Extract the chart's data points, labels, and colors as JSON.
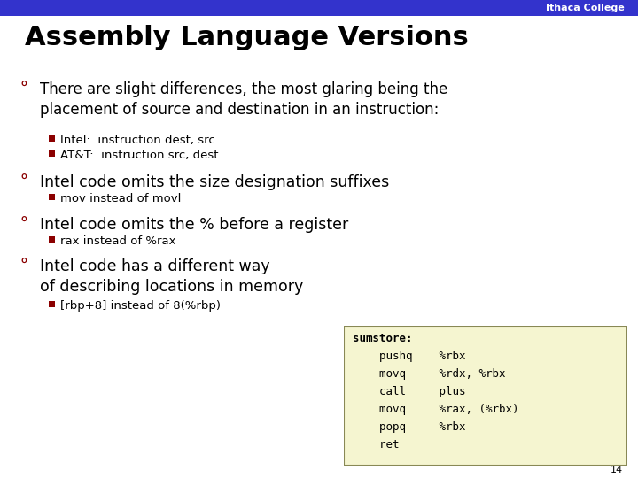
{
  "title": "Assembly Language Versions",
  "header_bar_color": "#3333cc",
  "header_text": "Ithaca College",
  "header_text_color": "#ffffff",
  "background_color": "#ffffff",
  "title_color": "#000000",
  "title_fontsize": 22,
  "bullet_color": "#8b0000",
  "sub_bullet_color": "#8b0000",
  "page_number": "14",
  "code_box": {
    "background": "#f5f5d0",
    "border_color": "#888855",
    "lines": [
      "sumstore:",
      "    pushq    %rbx",
      "    movq     %rdx, %rbx",
      "    call     plus",
      "    movq     %rax, (%rbx)",
      "    popq     %rbx",
      "    ret"
    ],
    "font_color": "#000000"
  }
}
